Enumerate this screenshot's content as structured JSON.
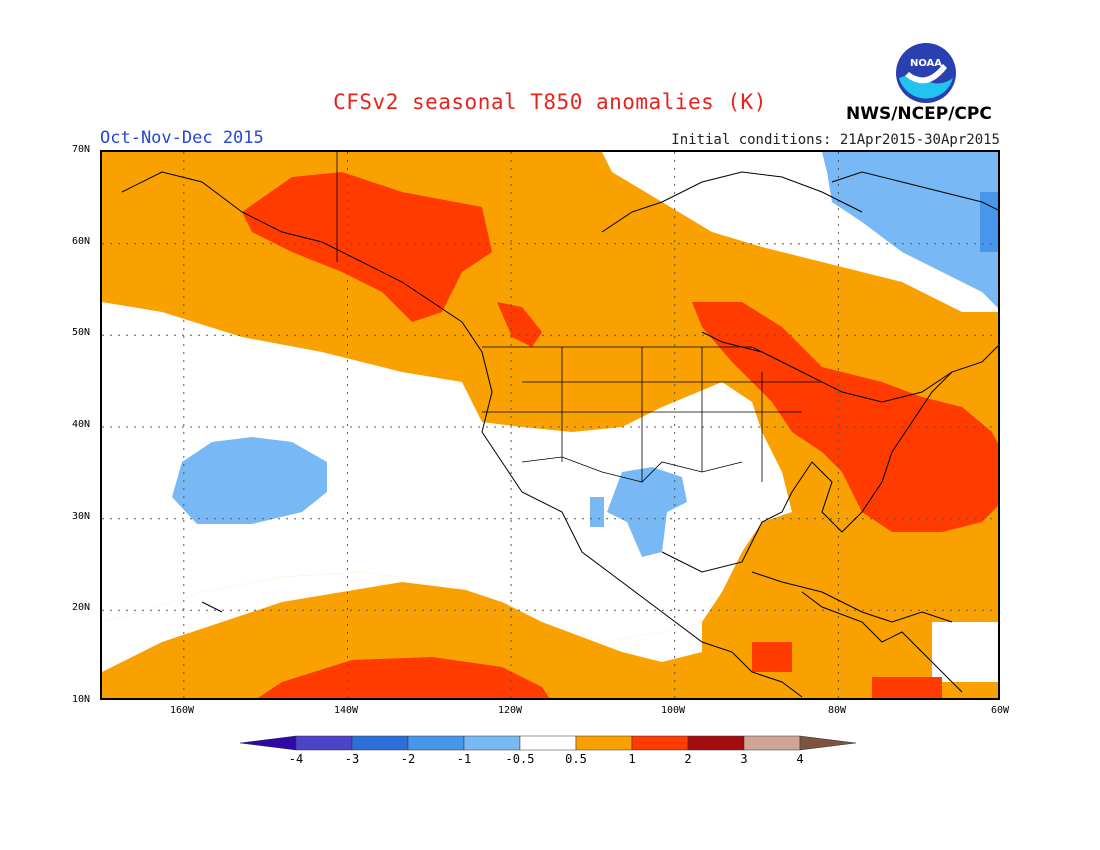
{
  "header": {
    "title": "CFSv2 seasonal T850 anomalies (K)",
    "period": "Oct-Nov-Dec 2015",
    "initial_conditions": "Initial conditions: 21Apr2015-30Apr2015",
    "organization": "NWS/NCEP/CPC",
    "logo_text": "NOAA"
  },
  "map": {
    "lat_labels": [
      "70N",
      "60N",
      "50N",
      "40N",
      "30N",
      "20N",
      "10N"
    ],
    "lon_labels": [
      "160W",
      "140W",
      "120W",
      "100W",
      "80W",
      "60W"
    ]
  },
  "colorbar": {
    "labels": [
      "-4",
      "-3",
      "-2",
      "-1",
      "-0.5",
      "0.5",
      "1",
      "2",
      "3",
      "4"
    ],
    "colors": [
      "#2d0aa8",
      "#4b43c8",
      "#2c6fd8",
      "#4896ec",
      "#78b8f4",
      "#ffffff",
      "#f9a100",
      "#ff3b00",
      "#a30d0d",
      "#cfa693",
      "#7d5441"
    ]
  }
}
